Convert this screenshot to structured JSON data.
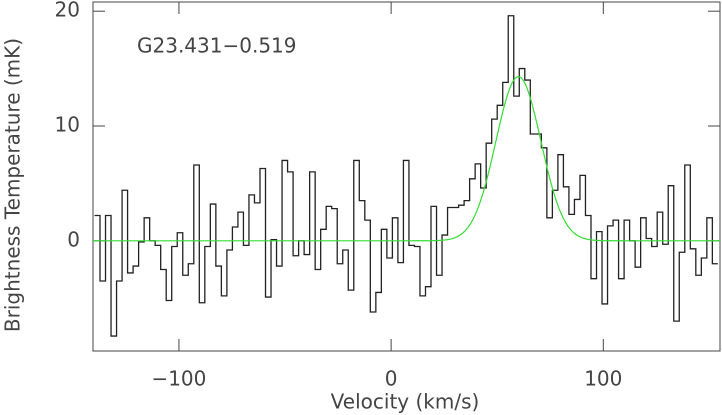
{
  "chart_data": {
    "type": "step",
    "annotation": "G23.431−0.519",
    "xlabel": "Velocity (km/s)",
    "ylabel": "Brightness Temperature (mK)",
    "xlim": [
      -140.5,
      155
    ],
    "ylim": [
      -9.6,
      20.8
    ],
    "xticks": [
      {
        "value": -100,
        "label": "−100"
      },
      0,
      100
    ],
    "yticks": [
      0,
      10,
      20
    ],
    "x": [
      -138.5,
      -135.9,
      -133.3,
      -130.7,
      -128.1,
      -125.5,
      -122.9,
      -120.3,
      -117.7,
      -115.1,
      -112.5,
      -109.9,
      -107.3,
      -104.7,
      -102.1,
      -99.5,
      -96.9,
      -94.3,
      -91.7,
      -89.1,
      -86.5,
      -83.9,
      -81.3,
      -78.7,
      -76.1,
      -73.5,
      -70.9,
      -68.3,
      -65.7,
      -63.1,
      -60.5,
      -57.9,
      -55.3,
      -52.7,
      -50.1,
      -47.5,
      -44.9,
      -42.3,
      -39.7,
      -37.1,
      -34.5,
      -31.9,
      -29.3,
      -26.7,
      -24.1,
      -21.5,
      -18.9,
      -16.3,
      -13.7,
      -11.1,
      -8.5,
      -5.9,
      -3.3,
      -0.7,
      1.9,
      4.5,
      7.1,
      9.7,
      12.3,
      14.9,
      17.5,
      20.1,
      22.7,
      25.3,
      27.9,
      30.5,
      33.1,
      35.7,
      38.3,
      40.9,
      43.5,
      46.1,
      48.7,
      51.3,
      53.9,
      56.5,
      59.1,
      61.7,
      64.3,
      66.9,
      69.5,
      72.1,
      74.7,
      77.3,
      79.9,
      82.5,
      85.1,
      87.7,
      90.3,
      92.9,
      95.5,
      98.1,
      100.7,
      103.3,
      105.9,
      108.5,
      111.1,
      113.7,
      116.3,
      118.9,
      121.5,
      124.1,
      126.7,
      129.3,
      131.9,
      134.5,
      137.1,
      139.7,
      142.3,
      144.9,
      147.5,
      150.1,
      152.7
    ],
    "series": [
      {
        "color": "#222222",
        "values": [
          2.2,
          -3.5,
          2.2,
          -8.3,
          -3.5,
          4.4,
          -2.8,
          -2.2,
          -0.1,
          2.0,
          0,
          -0.4,
          -2.5,
          -5.2,
          -0.5,
          0.7,
          -3,
          -2,
          6.6,
          -5.4,
          -0.5,
          3.2,
          -2.2,
          -4.8,
          -0.8,
          1.2,
          2.5,
          -0.4,
          4,
          3.3,
          6.3,
          -4.9,
          0.1,
          -2.2,
          7,
          6,
          -1.3,
          0,
          -1.2,
          6,
          -2.5,
          1,
          3,
          2.8,
          -2,
          -0.8,
          -4.3,
          7,
          3.5,
          1.8,
          -6.2,
          -4.5,
          1,
          -1.5,
          2,
          -1.9,
          7,
          -0.4,
          -0.5,
          -4.8,
          -4,
          3,
          -3,
          0.5,
          2.9,
          2.9,
          3.1,
          3.5,
          5.4,
          6.7,
          4.6,
          8.5,
          10.6,
          11.8,
          13.8,
          19.6,
          12.6,
          15,
          14,
          9.3,
          9.3,
          8.1,
          2,
          4.4,
          7.5,
          4.7,
          2.3,
          3.6,
          5.7,
          2.2,
          -3.3,
          0.8,
          -5.5,
          1.3,
          1.8,
          -3.3,
          1.8,
          0,
          -2.3,
          2,
          0.2,
          -0.5,
          2.5,
          -0.3,
          4.8,
          -7,
          -1,
          6.6,
          -0.7,
          -3,
          -1.5,
          2,
          -2
        ]
      }
    ],
    "fit": {
      "color": "#33dd33",
      "amplitude": 14.3,
      "center": 60,
      "fwhm": 25
    }
  }
}
